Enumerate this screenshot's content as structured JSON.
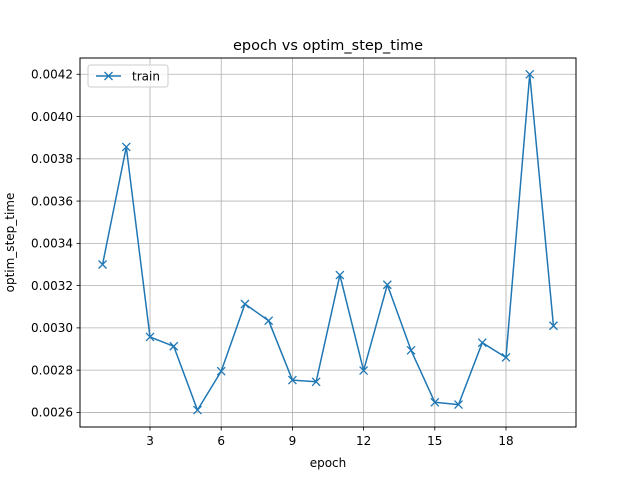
{
  "chart_data": {
    "type": "line",
    "title": "epoch vs optim_step_time",
    "xlabel": "epoch",
    "ylabel": "optim_step_time",
    "xlim": [
      0.05,
      20.95
    ],
    "ylim": [
      0.002531,
      0.004277
    ],
    "xticks": [
      3,
      6,
      9,
      12,
      15,
      18
    ],
    "yticks": [
      0.0026,
      0.0028,
      0.003,
      0.0032,
      0.0034,
      0.0036,
      0.0038,
      0.004,
      0.0042
    ],
    "ytick_labels": [
      "0.0026",
      "0.0028",
      "0.0030",
      "0.0032",
      "0.0034",
      "0.0036",
      "0.0038",
      "0.0040",
      "0.0042"
    ],
    "grid": true,
    "legend_position": "top-left",
    "series": [
      {
        "name": "train",
        "color": "#1f77b4",
        "marker": "x",
        "x": [
          1,
          2,
          3,
          4,
          5,
          6,
          7,
          8,
          9,
          10,
          11,
          12,
          13,
          14,
          15,
          16,
          17,
          18,
          19,
          20
        ],
        "y": [
          0.0033,
          0.003856,
          0.002957,
          0.002913,
          0.002611,
          0.002795,
          0.003113,
          0.003034,
          0.002753,
          0.002745,
          0.00325,
          0.002798,
          0.003204,
          0.002894,
          0.002648,
          0.002637,
          0.00293,
          0.00286,
          0.0042,
          0.00301
        ]
      }
    ]
  }
}
